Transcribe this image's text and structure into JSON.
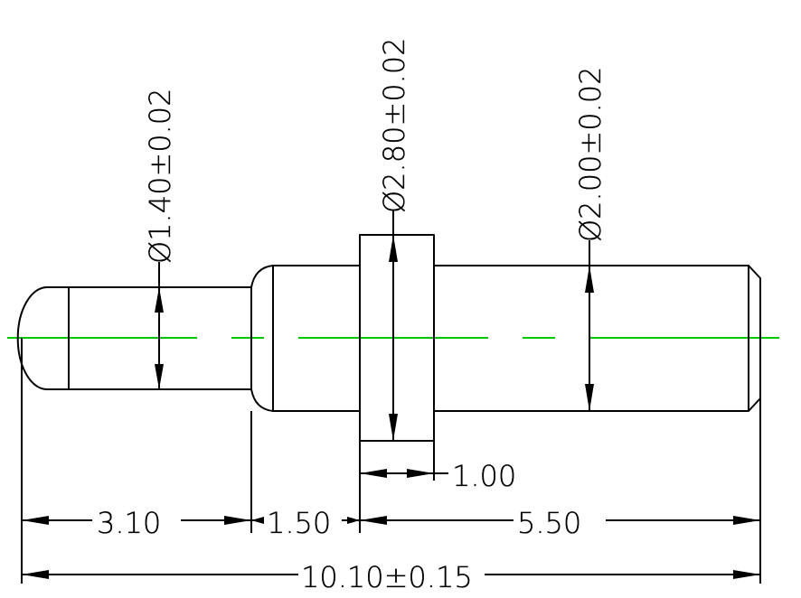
{
  "drawing": {
    "centerline_color": "#00C800",
    "line_color": "#000000",
    "background": "#FFFFFF"
  },
  "dimensions": {
    "tip_diameter": "Ø1.40±0.02",
    "flange_diameter": "Ø2.80±0.02",
    "shank_diameter": "Ø2.00±0.02",
    "flange_width": "1.00",
    "tip_length": "3.10",
    "neck_length": "1.50",
    "shank_length": "5.50",
    "overall_length": "10.10±0.15"
  }
}
